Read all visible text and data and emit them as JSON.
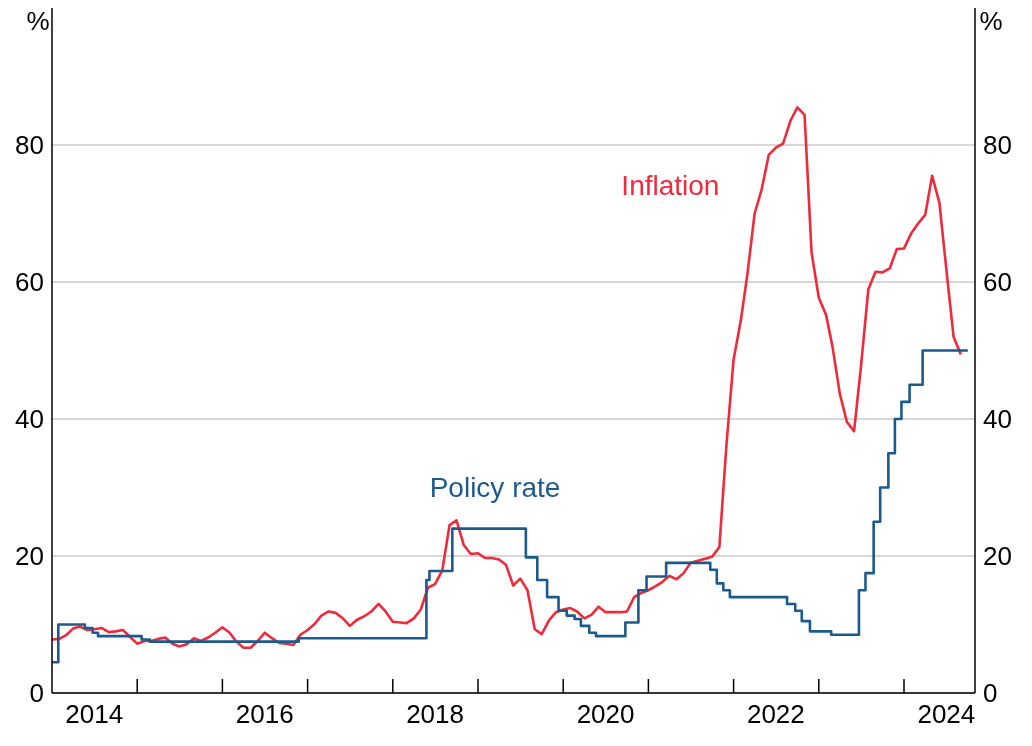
{
  "chart_data": {
    "type": "line",
    "ylabel": "%",
    "y2label": "%",
    "xlim": [
      "2014-01",
      "2024-11"
    ],
    "xticks": [
      {
        "value": "2014-07",
        "label": "2014"
      },
      {
        "value": "2015",
        "label": null
      },
      {
        "value": "2016",
        "label": null
      },
      {
        "value": "2016-07",
        "label": "2016"
      },
      {
        "value": "2017",
        "label": null
      },
      {
        "value": "2018",
        "label": null
      },
      {
        "value": "2018-07",
        "label": "2018"
      },
      {
        "value": "2019",
        "label": null
      },
      {
        "value": "2020",
        "label": null
      },
      {
        "value": "2020-07",
        "label": "2020"
      },
      {
        "value": "2021",
        "label": null
      },
      {
        "value": "2022",
        "label": null
      },
      {
        "value": "2022-07",
        "label": "2022"
      },
      {
        "value": "2023",
        "label": null
      },
      {
        "value": "2024",
        "label": null
      },
      {
        "value": "2024-07",
        "label": "2024"
      }
    ],
    "ylim": [
      0,
      100
    ],
    "yticks": [
      0,
      20,
      40,
      60,
      80
    ],
    "y2lim": [
      0,
      100
    ],
    "y2ticks": [
      0,
      20,
      40,
      60,
      80
    ],
    "grid": "y",
    "legend": false,
    "line_style": "solid",
    "marker": "none",
    "series": [
      {
        "name": "Inflation",
        "color": "#ee2a3b",
        "x": [
          "2014-01",
          "2014-02",
          "2014-03",
          "2014-04",
          "2014-05",
          "2014-06",
          "2014-07",
          "2014-08",
          "2014-09",
          "2014-10",
          "2014-11",
          "2014-12",
          "2015-01",
          "2015-02",
          "2015-03",
          "2015-04",
          "2015-05",
          "2015-06",
          "2015-07",
          "2015-08",
          "2015-09",
          "2015-10",
          "2015-11",
          "2015-12",
          "2016-01",
          "2016-02",
          "2016-03",
          "2016-04",
          "2016-05",
          "2016-06",
          "2016-07",
          "2016-08",
          "2016-09",
          "2016-10",
          "2016-11",
          "2016-12",
          "2017-01",
          "2017-02",
          "2017-03",
          "2017-04",
          "2017-05",
          "2017-06",
          "2017-07",
          "2017-08",
          "2017-09",
          "2017-10",
          "2017-11",
          "2017-12",
          "2018-01",
          "2018-02",
          "2018-03",
          "2018-04",
          "2018-05",
          "2018-06",
          "2018-07",
          "2018-08",
          "2018-09",
          "2018-10",
          "2018-11",
          "2018-12",
          "2019-01",
          "2019-02",
          "2019-03",
          "2019-04",
          "2019-05",
          "2019-06",
          "2019-07",
          "2019-08",
          "2019-09",
          "2019-10",
          "2019-11",
          "2019-12",
          "2020-01",
          "2020-02",
          "2020-03",
          "2020-04",
          "2020-05",
          "2020-06",
          "2020-07",
          "2020-08",
          "2020-09",
          "2020-10",
          "2020-11",
          "2020-12",
          "2021-01",
          "2021-02",
          "2021-03",
          "2021-04",
          "2021-05",
          "2021-06",
          "2021-07",
          "2021-08",
          "2021-09",
          "2021-10",
          "2021-11",
          "2021-12",
          "2022-01",
          "2022-02",
          "2022-03",
          "2022-04",
          "2022-05",
          "2022-06",
          "2022-07",
          "2022-08",
          "2022-09",
          "2022-10",
          "2022-11",
          "2022-12",
          "2023-01",
          "2023-02",
          "2023-03",
          "2023-04",
          "2023-05",
          "2023-06",
          "2023-07",
          "2023-08",
          "2023-09",
          "2023-10",
          "2023-11",
          "2023-12",
          "2024-01",
          "2024-02",
          "2024-03",
          "2024-04",
          "2024-05",
          "2024-06",
          "2024-07",
          "2024-08",
          "2024-09"
        ],
        "values": [
          7.8,
          7.9,
          8.4,
          9.4,
          9.7,
          9.2,
          9.3,
          9.5,
          8.9,
          9,
          9.2,
          8.2,
          7.2,
          7.6,
          7.6,
          7.9,
          8.1,
          7.2,
          6.8,
          7.1,
          8,
          7.6,
          8.1,
          8.8,
          9.6,
          8.8,
          7.5,
          6.6,
          6.6,
          7.6,
          8.8,
          8,
          7.3,
          7.2,
          7,
          8.5,
          9.2,
          10.1,
          11.3,
          11.9,
          11.7,
          10.9,
          9.8,
          10.7,
          11.2,
          11.9,
          13,
          11.9,
          10.4,
          10.3,
          10.2,
          10.9,
          12.2,
          15.4,
          15.9,
          17.9,
          24.5,
          25.2,
          21.6,
          20.3,
          20.4,
          19.7,
          19.7,
          19.5,
          18.7,
          15.7,
          16.7,
          15,
          9.3,
          8.6,
          10.6,
          11.8,
          12.2,
          12.4,
          11.9,
          10.9,
          11.4,
          12.6,
          11.8,
          11.8,
          11.8,
          11.9,
          14,
          14.6,
          15,
          15.6,
          16.2,
          17.1,
          16.6,
          17.5,
          19,
          19.3,
          19.6,
          19.9,
          21.3,
          36.1,
          48.7,
          54.4,
          61.1,
          70,
          73.5,
          78.6,
          79.6,
          80.2,
          83.5,
          85.5,
          84.4,
          64.3,
          57.7,
          55.2,
          50.5,
          43.7,
          39.6,
          38.2,
          47.8,
          58.9,
          61.5,
          61.4,
          62,
          64.8,
          64.9,
          67.1,
          68.5,
          69.8,
          75.5,
          71.6,
          61.8,
          52,
          49.4
        ]
      },
      {
        "name": "Policy rate",
        "color": "#1d5a8c",
        "type": "step",
        "x": [
          "2014-01-01",
          "2014-01-28",
          "2014-05-22",
          "2014-06-24",
          "2014-07-17",
          "2015-01-20",
          "2015-02-24",
          "2016-11-24",
          "2018-05-25",
          "2018-06-07",
          "2018-09-13",
          "2019-07-25",
          "2019-09-12",
          "2019-10-24",
          "2019-12-12",
          "2020-01-16",
          "2020-02-19",
          "2020-03-17",
          "2020-04-22",
          "2020-05-21",
          "2020-09-24",
          "2020-11-19",
          "2020-12-24",
          "2021-03-18",
          "2021-09-23",
          "2021-10-21",
          "2021-11-18",
          "2021-12-16",
          "2022-08-18",
          "2022-09-22",
          "2022-10-20",
          "2022-11-24",
          "2023-02-23",
          "2023-06-22",
          "2023-07-20",
          "2023-08-24",
          "2023-09-21",
          "2023-10-26",
          "2023-11-23",
          "2023-12-21",
          "2024-01-25",
          "2024-03-21",
          "2024-10-01"
        ],
        "values": [
          4.5,
          10,
          9.5,
          8.8,
          8.3,
          7.8,
          7.5,
          8,
          16.5,
          17.8,
          24,
          19.8,
          16.5,
          14,
          12,
          11.3,
          10.8,
          9.8,
          8.8,
          8.3,
          10.3,
          15,
          17,
          19,
          18,
          16,
          15,
          14,
          13,
          12,
          10.5,
          9,
          8.5,
          15,
          17.5,
          25,
          30,
          35,
          40,
          42.5,
          45,
          50,
          50
        ]
      }
    ]
  }
}
